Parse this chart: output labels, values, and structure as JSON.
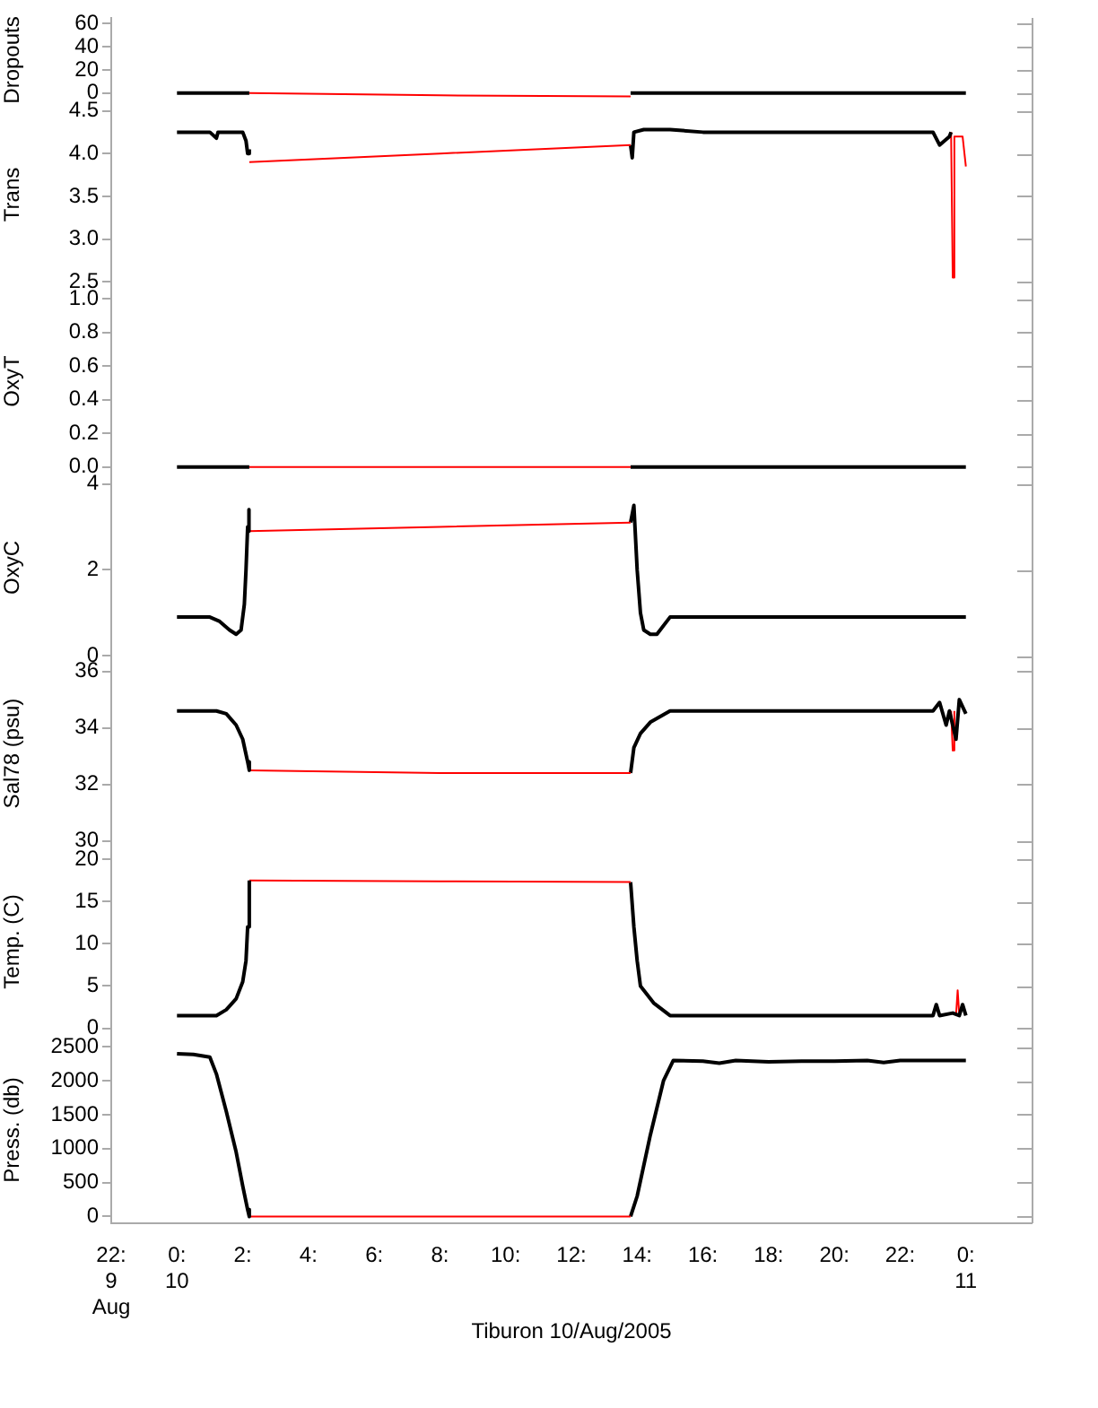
{
  "chart_data": [
    {
      "type": "line",
      "ylabel": "Dropouts",
      "xlim": [
        -2,
        26
      ],
      "ylim": [
        -8,
        65
      ],
      "yticks": [
        0,
        20,
        40,
        60
      ],
      "tick_labels": "y",
      "series": [
        {
          "color": "#000000",
          "x": [
            0,
            1,
            2.2
          ],
          "values": [
            0,
            0,
            0
          ]
        },
        {
          "color": "#ff0000",
          "x": [
            2.2,
            8,
            13.8
          ],
          "values": [
            0,
            -2,
            -3
          ]
        },
        {
          "color": "#000000",
          "x": [
            13.8,
            19,
            24
          ],
          "values": [
            0,
            0,
            0
          ]
        }
      ]
    },
    {
      "type": "line",
      "ylabel": "Trans",
      "xlim": [
        -2,
        26
      ],
      "ylim": [
        2.44,
        4.6
      ],
      "yticks": [
        {
          "value": 2.5,
          "label": "2.5"
        },
        {
          "value": 3,
          "label": "3.0"
        },
        {
          "value": 3.5,
          "label": "3.5"
        },
        {
          "value": 4,
          "label": "4.0"
        },
        {
          "value": 4.5,
          "label": "4.5"
        }
      ],
      "tick_labels": "y",
      "series": [
        {
          "color": "#000000",
          "x": [
            0,
            1,
            1.2,
            1.25,
            2.0,
            2.1,
            2.15,
            2.2
          ],
          "values": [
            4.25,
            4.25,
            4.18,
            4.25,
            4.25,
            4.15,
            4.0,
            4.05
          ]
        },
        {
          "color": "#ff0000",
          "x": [
            2.2,
            8,
            13.8
          ],
          "values": [
            3.9,
            4.0,
            4.1
          ]
        },
        {
          "color": "#000000",
          "x": [
            13.8,
            13.85,
            13.9,
            14.2,
            15,
            16,
            20,
            23,
            23.2,
            23.5,
            23.55
          ],
          "values": [
            4.1,
            3.95,
            4.25,
            4.28,
            4.28,
            4.25,
            4.25,
            4.25,
            4.1,
            4.2,
            4.25
          ]
        },
        {
          "color": "#ff0000",
          "x": [
            23.55,
            23.6,
            23.65,
            23.9,
            24
          ],
          "values": [
            4.25,
            2.55,
            4.2,
            4.2,
            3.85
          ]
        }
      ]
    },
    {
      "type": "line",
      "ylabel": "OxyT",
      "xlim": [
        -2,
        26
      ],
      "ylim": [
        -0.05,
        1.07
      ],
      "yticks": [
        {
          "value": 0,
          "label": "0.0"
        },
        {
          "value": 0.2,
          "label": "0.2"
        },
        {
          "value": 0.4,
          "label": "0.4"
        },
        {
          "value": 0.6,
          "label": "0.6"
        },
        {
          "value": 0.8,
          "label": "0.8"
        },
        {
          "value": 1,
          "label": "1.0"
        }
      ],
      "tick_labels": "y",
      "series": [
        {
          "color": "#000000",
          "x": [
            0,
            1,
            2.2
          ],
          "values": [
            0,
            0,
            0
          ]
        },
        {
          "color": "#ff0000",
          "x": [
            2.2,
            8,
            13.8
          ],
          "values": [
            0,
            0,
            0
          ]
        },
        {
          "color": "#000000",
          "x": [
            13.8,
            19,
            24
          ],
          "values": [
            0,
            0,
            0
          ]
        }
      ]
    },
    {
      "type": "line",
      "ylabel": "OxyC",
      "xlim": [
        -2,
        26
      ],
      "ylim": [
        -0.1,
        4.2
      ],
      "yticks": [
        0,
        2,
        4
      ],
      "tick_labels": "y",
      "series": [
        {
          "color": "#000000",
          "x": [
            0,
            1.0,
            1.3,
            1.6,
            1.8,
            1.95,
            2.05,
            2.1,
            2.15,
            2.18,
            2.2
          ],
          "values": [
            0.9,
            0.9,
            0.8,
            0.6,
            0.5,
            0.6,
            1.2,
            2.0,
            3.0,
            3.4,
            2.9
          ]
        },
        {
          "color": "#ff0000",
          "x": [
            2.2,
            8,
            13.8
          ],
          "values": [
            2.9,
            3.0,
            3.1
          ]
        },
        {
          "color": "#000000",
          "x": [
            13.8,
            13.9,
            14.0,
            14.1,
            14.2,
            14.4,
            14.6,
            15.0,
            20,
            24
          ],
          "values": [
            3.1,
            3.5,
            2.0,
            1.0,
            0.6,
            0.5,
            0.5,
            0.9,
            0.9,
            0.9
          ]
        }
      ]
    },
    {
      "type": "line",
      "ylabel": "Sal78 (psu)",
      "xlim": [
        -2,
        26
      ],
      "ylim": [
        29.8,
        36.4
      ],
      "yticks": [
        30,
        32,
        34,
        36
      ],
      "tick_labels": "y",
      "series": [
        {
          "color": "#000000",
          "x": [
            0,
            1.2,
            1.5,
            1.8,
            2.0,
            2.15,
            2.2
          ],
          "values": [
            34.6,
            34.6,
            34.5,
            34.1,
            33.6,
            32.8,
            32.5
          ]
        },
        {
          "color": "#ff0000",
          "x": [
            2.2,
            8,
            13.8
          ],
          "values": [
            32.5,
            32.4,
            32.4
          ]
        },
        {
          "color": "#000000",
          "x": [
            13.8,
            13.9,
            14.1,
            14.4,
            15.0,
            23,
            23.2,
            23.4,
            23.5,
            23.7,
            23.8,
            24
          ],
          "values": [
            32.4,
            33.3,
            33.8,
            34.2,
            34.6,
            34.6,
            34.9,
            34.1,
            34.6,
            33.6,
            35.0,
            34.5
          ]
        },
        {
          "color": "#ff0000",
          "x": [
            23.55,
            23.6,
            23.65
          ],
          "values": [
            34.6,
            33.2,
            34.6
          ]
        }
      ]
    },
    {
      "type": "line",
      "ylabel": "Temp. (C)",
      "xlim": [
        -2,
        26
      ],
      "ylim": [
        -1,
        21.5
      ],
      "yticks": [
        0,
        5,
        10,
        15,
        20
      ],
      "tick_labels": "y",
      "series": [
        {
          "color": "#000000",
          "x": [
            0,
            1.2,
            1.5,
            1.8,
            2.0,
            2.1,
            2.15,
            2.2
          ],
          "values": [
            1.5,
            1.5,
            2.2,
            3.5,
            5.5,
            8,
            12,
            17.5
          ]
        },
        {
          "color": "#ff0000",
          "x": [
            2.2,
            8,
            13.8
          ],
          "values": [
            17.5,
            17.4,
            17.3
          ]
        },
        {
          "color": "#000000",
          "x": [
            13.8,
            13.9,
            14.0,
            14.1,
            14.5,
            15.0,
            23.0,
            23.1,
            23.2,
            23.6,
            23.8,
            23.9,
            24
          ],
          "values": [
            17.3,
            12,
            8,
            5,
            3,
            1.5,
            1.5,
            2.8,
            1.5,
            1.8,
            1.5,
            2.8,
            1.5
          ]
        },
        {
          "color": "#ff0000",
          "x": [
            23.7,
            23.75,
            23.8
          ],
          "values": [
            1.5,
            4.5,
            1.5
          ]
        }
      ]
    },
    {
      "type": "line",
      "ylabel": "Press. (db)",
      "xlabel": "Tiburon 10/Aug/2005",
      "xlim": [
        -2,
        26
      ],
      "ylim": [
        -100,
        2650
      ],
      "yticks": [
        0,
        500,
        1000,
        1500,
        2000,
        2500
      ],
      "xticks": [
        {
          "value": -2,
          "label": "22:\n9\nAug"
        },
        {
          "value": 0,
          "label": "0:\n10"
        },
        {
          "value": 2,
          "label": "2:"
        },
        {
          "value": 4,
          "label": "4:"
        },
        {
          "value": 6,
          "label": "6:"
        },
        {
          "value": 8,
          "label": "8:"
        },
        {
          "value": 10,
          "label": "10:"
        },
        {
          "value": 12,
          "label": "12:"
        },
        {
          "value": 14,
          "label": "14:"
        },
        {
          "value": 16,
          "label": "16:"
        },
        {
          "value": 18,
          "label": "18:"
        },
        {
          "value": 20,
          "label": "20:"
        },
        {
          "value": 22,
          "label": "22:"
        },
        {
          "value": 24,
          "label": "0:\n11"
        }
      ],
      "series": [
        {
          "color": "#000000",
          "x": [
            0,
            0.5,
            1.0,
            1.2,
            1.5,
            1.8,
            2.0,
            2.15,
            2.2
          ],
          "values": [
            2400,
            2390,
            2350,
            2100,
            1550,
            950,
            450,
            100,
            0
          ]
        },
        {
          "color": "#ff0000",
          "x": [
            2.2,
            8,
            13.8
          ],
          "values": [
            0,
            0,
            0
          ]
        },
        {
          "color": "#000000",
          "x": [
            13.8,
            14.0,
            14.4,
            14.8,
            15.1,
            16,
            16.5,
            17,
            18,
            19,
            20,
            21,
            21.5,
            22,
            23,
            24
          ],
          "values": [
            0,
            300,
            1200,
            2000,
            2300,
            2290,
            2260,
            2300,
            2280,
            2290,
            2290,
            2300,
            2270,
            2300,
            2300,
            2300
          ]
        }
      ]
    }
  ]
}
